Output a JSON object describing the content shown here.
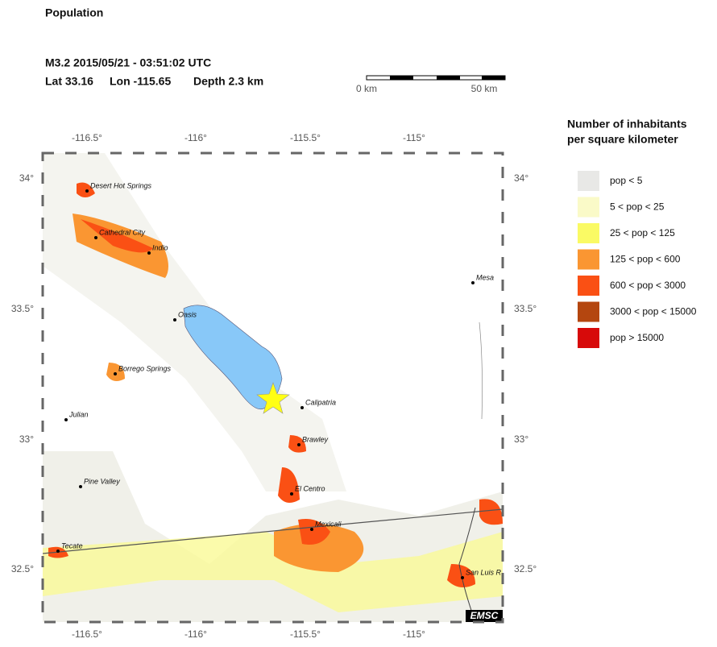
{
  "header": {
    "title": "Population",
    "event": "M3.2  2015/05/21 - 03:51:02 UTC",
    "lat": "Lat 33.16",
    "lon": "Lon -115.65",
    "depth": "Depth  2.3 km"
  },
  "scale": {
    "start": "0 km",
    "end": "50 km"
  },
  "legend": {
    "title": [
      "Number of inhabitants",
      "per square kilometer"
    ],
    "items": [
      {
        "label": "pop < 5",
        "color": "#e8e8e6"
      },
      {
        "label": "5 < pop < 25",
        "color": "#fafac8"
      },
      {
        "label": "25 < pop < 125",
        "color": "#fafa64"
      },
      {
        "label": "125 < pop < 600",
        "color": "#fa9632"
      },
      {
        "label": "600 < pop < 3000",
        "color": "#fa5014"
      },
      {
        "label": "3000 < pop < 15000",
        "color": "#b4460f"
      },
      {
        "label": "pop > 15000",
        "color": "#d70a0a"
      }
    ]
  },
  "map": {
    "lon_ticks": [
      "-116.5°",
      "-116°",
      "-115.5°",
      "-115°"
    ],
    "lat_ticks": [
      "34°",
      "33.5°",
      "33°",
      "32.5°"
    ],
    "cities": [
      "Desert Hot Springs",
      "Cathedral City",
      "Indio",
      "Oasis",
      "Borrego Springs",
      "Julian",
      "Pine Valley",
      "Tecate",
      "Calipatria",
      "Brawley",
      "El Centro",
      "Mexicali",
      "San Luis R",
      "Mesa"
    ],
    "credit": "EMSC"
  }
}
